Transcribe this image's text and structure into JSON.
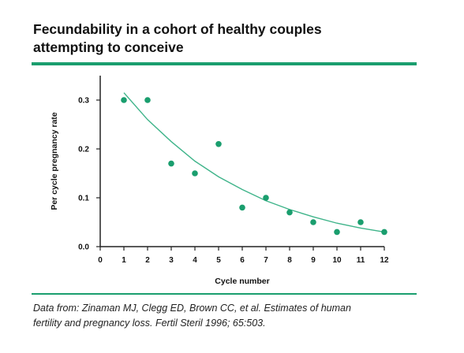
{
  "title_line1": "Fecundability in a cohort of healthy couples",
  "title_line2": "attempting to conceive",
  "source_line1": "Data from: Zinaman MJ, Clegg ED, Brown CC, et al. Estimates of human",
  "source_line2": "fertility and pregnancy loss. Fertil Steril 1996; 65:503.",
  "colors": {
    "accent": "#1a9e6e",
    "point": "#1a9e6e",
    "curve": "#3fb48a",
    "axis": "#222222"
  },
  "chart_data": {
    "type": "scatter",
    "xlabel": "Cycle number",
    "ylabel": "Per cycle pregnancy rate",
    "xlim": [
      0,
      12
    ],
    "ylim": [
      0,
      0.35
    ],
    "x_ticks": [
      "0",
      "1",
      "2",
      "3",
      "4",
      "5",
      "6",
      "7",
      "8",
      "9",
      "10",
      "11",
      "12"
    ],
    "y_ticks": [
      "0.0",
      "0.1",
      "0.2",
      "0.3"
    ],
    "y_tick_values": [
      0,
      0.1,
      0.2,
      0.3
    ],
    "grid": false,
    "points": {
      "x": [
        1,
        2,
        3,
        4,
        5,
        6,
        7,
        8,
        9,
        10,
        11,
        12
      ],
      "y": [
        0.3,
        0.3,
        0.17,
        0.15,
        0.21,
        0.08,
        0.1,
        0.07,
        0.05,
        0.03,
        0.05,
        0.03
      ]
    },
    "trend_line": {
      "x": [
        1,
        2,
        3,
        4,
        5,
        6,
        7,
        8,
        9,
        10,
        11,
        12
      ],
      "y": [
        0.315,
        0.26,
        0.215,
        0.175,
        0.143,
        0.117,
        0.094,
        0.076,
        0.061,
        0.048,
        0.038,
        0.03
      ]
    }
  }
}
